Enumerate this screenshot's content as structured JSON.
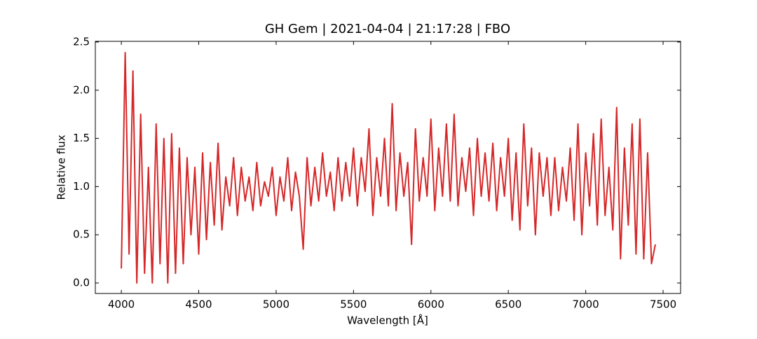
{
  "chart_data": {
    "type": "line",
    "title": "GH Gem | 2021-04-04 | 21:17:28 | FBO",
    "x_label": "Wavelength [Å]",
    "y_label": "Relative flux",
    "xlim": [
      3832,
      7613
    ],
    "ylim": [
      -0.109,
      2.507
    ],
    "xticks": [
      4000,
      4500,
      5000,
      5500,
      6000,
      6500,
      7000,
      7500
    ],
    "yticks": [
      {
        "value": 0,
        "label": "0.0"
      },
      0.5,
      {
        "value": 1,
        "label": "1.0"
      },
      1.5,
      {
        "value": 2,
        "label": "2.0"
      },
      2.5
    ],
    "series": [
      {
        "name": "GH Gem",
        "color": "#d62728",
        "x": [
          4000,
          4025,
          4050,
          4075,
          4100,
          4125,
          4150,
          4175,
          4200,
          4225,
          4250,
          4275,
          4300,
          4325,
          4350,
          4375,
          4400,
          4425,
          4450,
          4475,
          4500,
          4525,
          4550,
          4575,
          4600,
          4625,
          4650,
          4675,
          4700,
          4725,
          4750,
          4775,
          4800,
          4825,
          4850,
          4875,
          4900,
          4925,
          4950,
          4975,
          5000,
          5025,
          5050,
          5075,
          5100,
          5125,
          5150,
          5175,
          5200,
          5225,
          5250,
          5275,
          5300,
          5325,
          5350,
          5375,
          5400,
          5425,
          5450,
          5475,
          5500,
          5525,
          5550,
          5575,
          5600,
          5625,
          5650,
          5675,
          5700,
          5725,
          5750,
          5775,
          5800,
          5825,
          5850,
          5875,
          5900,
          5925,
          5950,
          5975,
          6000,
          6025,
          6050,
          6075,
          6100,
          6125,
          6150,
          6175,
          6200,
          6225,
          6250,
          6275,
          6300,
          6325,
          6350,
          6375,
          6400,
          6425,
          6450,
          6475,
          6500,
          6525,
          6550,
          6575,
          6600,
          6625,
          6650,
          6675,
          6700,
          6725,
          6750,
          6775,
          6800,
          6825,
          6850,
          6875,
          6900,
          6925,
          6950,
          6975,
          7000,
          7025,
          7050,
          7075,
          7100,
          7125,
          7150,
          7175,
          7200,
          7225,
          7250,
          7275,
          7300,
          7325,
          7350,
          7375,
          7400,
          7425,
          7450
        ],
        "values": [
          0.15,
          2.39,
          0.3,
          2.2,
          0.0,
          1.75,
          0.1,
          1.2,
          0.0,
          1.65,
          0.2,
          1.5,
          0.0,
          1.55,
          0.1,
          1.4,
          0.2,
          1.3,
          0.5,
          1.2,
          0.3,
          1.35,
          0.45,
          1.25,
          0.6,
          1.45,
          0.55,
          1.1,
          0.8,
          1.3,
          0.7,
          1.2,
          0.85,
          1.1,
          0.75,
          1.25,
          0.8,
          1.05,
          0.9,
          1.2,
          0.7,
          1.1,
          0.85,
          1.3,
          0.75,
          1.15,
          0.9,
          0.35,
          1.3,
          0.8,
          1.2,
          0.85,
          1.35,
          0.9,
          1.15,
          0.75,
          1.3,
          0.85,
          1.25,
          0.9,
          1.4,
          0.8,
          1.3,
          0.95,
          1.6,
          0.7,
          1.3,
          0.9,
          1.5,
          0.8,
          1.86,
          0.75,
          1.35,
          0.9,
          1.25,
          0.4,
          1.6,
          0.85,
          1.3,
          0.9,
          1.7,
          0.75,
          1.4,
          0.9,
          1.65,
          0.85,
          1.75,
          0.8,
          1.3,
          0.95,
          1.4,
          0.7,
          1.5,
          0.9,
          1.35,
          0.85,
          1.45,
          0.75,
          1.3,
          0.9,
          1.5,
          0.65,
          1.35,
          0.55,
          1.65,
          0.8,
          1.4,
          0.5,
          1.35,
          0.9,
          1.3,
          0.7,
          1.3,
          0.75,
          1.2,
          0.85,
          1.4,
          0.65,
          1.65,
          0.5,
          1.35,
          0.8,
          1.55,
          0.6,
          1.7,
          0.7,
          1.2,
          0.55,
          1.82,
          0.25,
          1.4,
          0.6,
          1.65,
          0.3,
          1.7,
          0.25,
          1.35,
          0.2,
          0.4
        ]
      }
    ]
  }
}
